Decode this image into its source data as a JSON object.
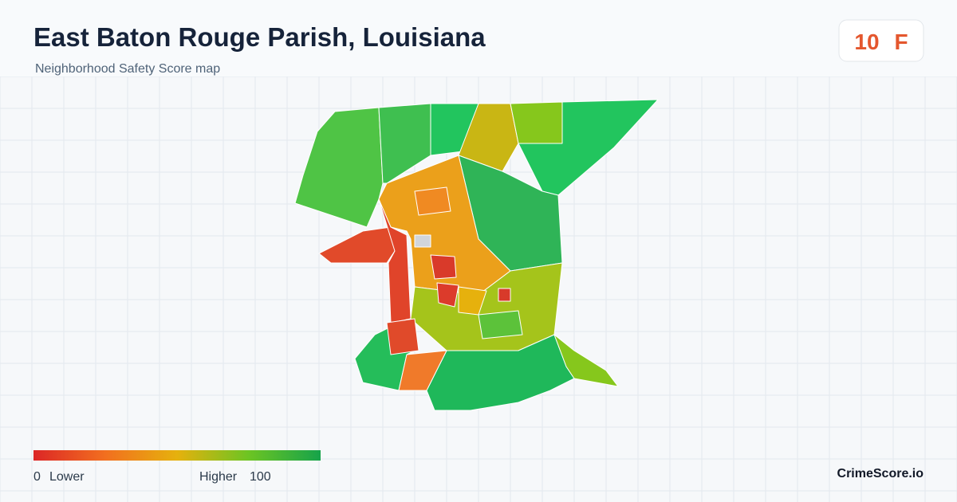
{
  "header": {
    "title": "East Baton Rouge Parish, Louisiana",
    "subtitle": "Neighborhood Safety Score map"
  },
  "score": {
    "value": 10,
    "grade": "F"
  },
  "legend": {
    "min": 0,
    "min_label": "Lower",
    "max_label": "Higher",
    "max": 100
  },
  "brand": "CrimeScore.io"
}
